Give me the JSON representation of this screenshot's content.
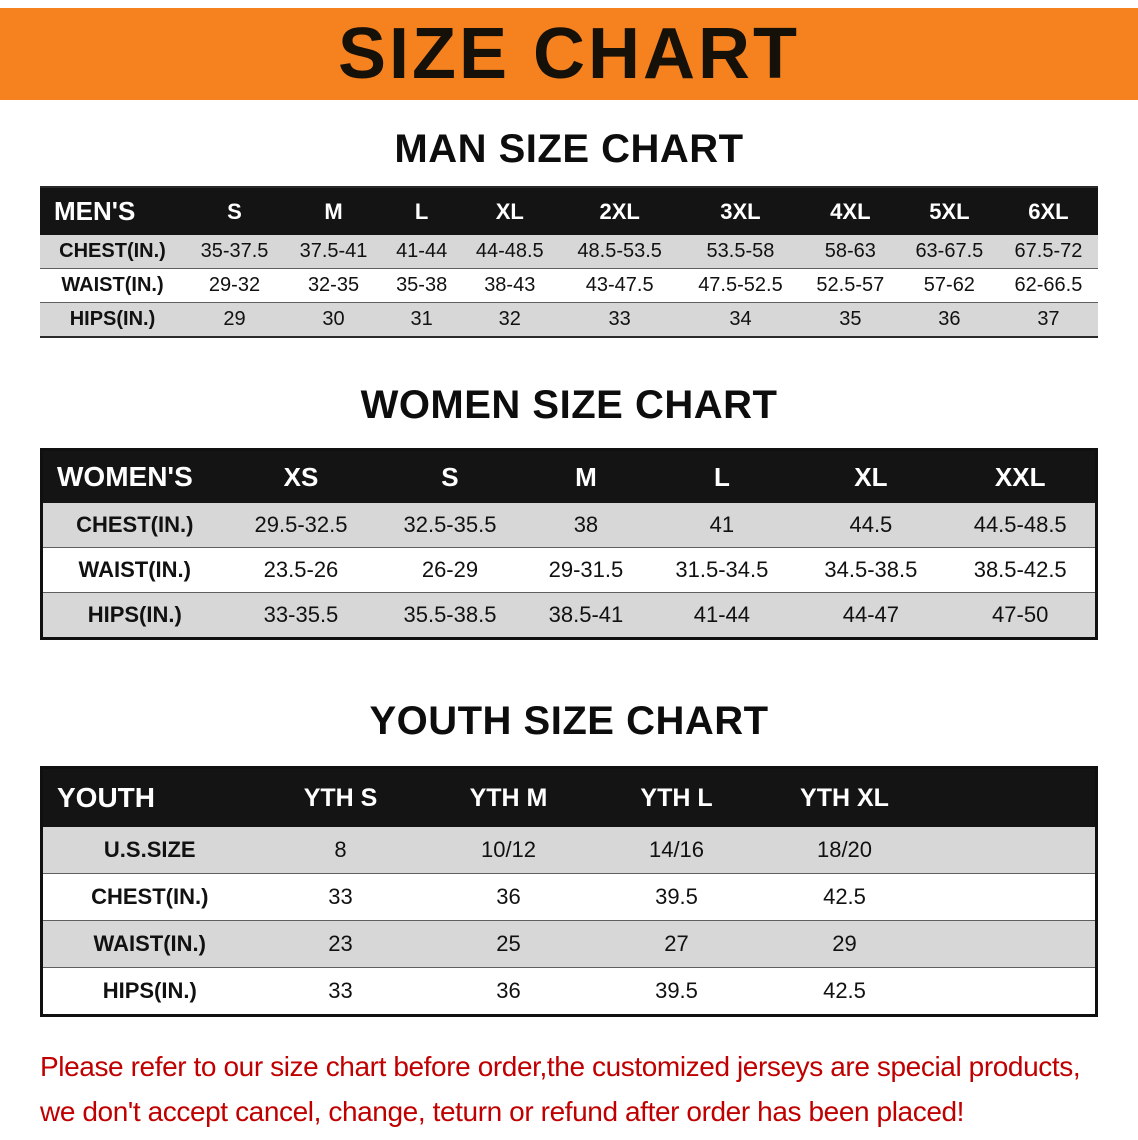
{
  "banner": {
    "title": "SIZE CHART"
  },
  "colors": {
    "banner_bg": "#f5821f",
    "header_bg": "#141414",
    "row_alt": "#d7d7d7",
    "footer_red": "#c00000"
  },
  "sections": [
    {
      "heading": "MAN SIZE CHART",
      "table": {
        "name": "mens",
        "header": [
          "MEN'S",
          "S",
          "M",
          "L",
          "XL",
          "2XL",
          "3XL",
          "4XL",
          "5XL",
          "6XL"
        ],
        "rows": [
          [
            "CHEST(IN.)",
            "35-37.5",
            "37.5-41",
            "41-44",
            "44-48.5",
            "48.5-53.5",
            "53.5-58",
            "58-63",
            "63-67.5",
            "67.5-72"
          ],
          [
            "WAIST(IN.)",
            "29-32",
            "32-35",
            "35-38",
            "38-43",
            "43-47.5",
            "47.5-52.5",
            "52.5-57",
            "57-62",
            "62-66.5"
          ],
          [
            "HIPS(IN.)",
            "29",
            "30",
            "31",
            "32",
            "33",
            "34",
            "35",
            "36",
            "37"
          ]
        ]
      }
    },
    {
      "heading": "WOMEN SIZE CHART",
      "table": {
        "name": "womens",
        "header": [
          "WOMEN'S",
          "XS",
          "S",
          "M",
          "L",
          "XL",
          "XXL"
        ],
        "rows": [
          [
            "CHEST(IN.)",
            "29.5-32.5",
            "32.5-35.5",
            "38",
            "41",
            "44.5",
            "44.5-48.5"
          ],
          [
            "WAIST(IN.)",
            "23.5-26",
            "26-29",
            "29-31.5",
            "31.5-34.5",
            "34.5-38.5",
            "38.5-42.5"
          ],
          [
            "HIPS(IN.)",
            "33-35.5",
            "35.5-38.5",
            "38.5-41",
            "41-44",
            "44-47",
            "47-50"
          ]
        ]
      }
    },
    {
      "heading": "YOUTH SIZE CHART",
      "table": {
        "name": "youth",
        "trailing_blank_column": true,
        "header": [
          "YOUTH",
          "YTH S",
          "YTH M",
          "YTH L",
          "YTH XL"
        ],
        "rows": [
          [
            "U.S.SIZE",
            "8",
            "10/12",
            "14/16",
            "18/20"
          ],
          [
            "CHEST(IN.)",
            "33",
            "36",
            "39.5",
            "42.5"
          ],
          [
            "WAIST(IN.)",
            "23",
            "25",
            "27",
            "29"
          ],
          [
            "HIPS(IN.)",
            "33",
            "36",
            "39.5",
            "42.5"
          ]
        ]
      }
    }
  ],
  "footer": {
    "line1": "Please refer to our size chart before order,the customized jerseys are special products,",
    "line2": "we don't accept cancel, change, teturn or refund after order has been placed!"
  }
}
